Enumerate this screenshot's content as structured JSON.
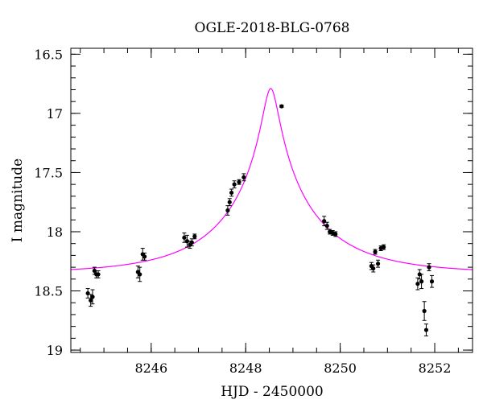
{
  "chart_data": {
    "type": "scatter",
    "title": "OGLE-2018-BLG-0768",
    "xlabel": "HJD - 2450000",
    "ylabel": "I magnitude",
    "xlim": [
      8244.3,
      8252.8
    ],
    "ylim": [
      19.02,
      16.45
    ],
    "y_inverted": true,
    "grid": false,
    "x_ticks": [
      8246,
      8248,
      8250,
      8252
    ],
    "x_tick_labels": [
      "8246",
      "8248",
      "8250",
      "8252"
    ],
    "x_minor_step": 0.5,
    "y_ticks": [
      16.5,
      17,
      17.5,
      18,
      18.5,
      19
    ],
    "y_tick_labels": [
      "16.5",
      "17",
      "17.5",
      "18",
      "18.5",
      "19"
    ],
    "y_minor_step": 0.1,
    "colors": {
      "data": "#000000",
      "model": "#ff00ff",
      "axes": "#000000"
    },
    "model_curve": {
      "description": "Magenta single-lens microlensing model",
      "t0": 8248.53,
      "u0": 0.078,
      "tE": 2.0,
      "baseline_mag": 18.35,
      "peak_mag": 16.79
    },
    "series": [
      {
        "x": [
          8244.66,
          8244.72,
          8244.76,
          8244.8,
          8244.84,
          8244.88,
          8245.72,
          8245.76,
          8245.82,
          8245.86,
          8246.7,
          8246.76,
          8246.82,
          8246.86,
          8246.92,
          8247.62,
          8247.66,
          8247.7,
          8247.76,
          8247.86,
          8247.96,
          8248.76,
          8249.66,
          8249.72,
          8249.78,
          8249.84,
          8249.9,
          8250.66,
          8250.7,
          8250.74,
          8250.8,
          8250.86,
          8250.92,
          8251.64,
          8251.68,
          8251.72,
          8251.78,
          8251.82,
          8251.88,
          8251.94
        ],
        "y": [
          18.52,
          18.58,
          18.55,
          18.33,
          18.36,
          18.36,
          18.34,
          18.36,
          18.19,
          18.21,
          18.05,
          18.08,
          18.11,
          18.09,
          18.04,
          17.82,
          17.75,
          17.67,
          17.6,
          17.58,
          17.54,
          16.94,
          17.91,
          17.95,
          18.0,
          18.01,
          18.02,
          18.29,
          18.31,
          18.17,
          18.27,
          18.14,
          18.13,
          18.44,
          18.36,
          18.42,
          18.67,
          18.83,
          18.3,
          18.42
        ],
        "yerr": [
          0.04,
          0.05,
          0.06,
          0.03,
          0.03,
          0.03,
          0.05,
          0.06,
          0.05,
          0.03,
          0.04,
          0.05,
          0.03,
          0.03,
          0.02,
          0.04,
          0.03,
          0.03,
          0.03,
          0.02,
          0.03,
          0.01,
          0.04,
          0.03,
          0.02,
          0.02,
          0.02,
          0.03,
          0.03,
          0.02,
          0.03,
          0.02,
          0.02,
          0.05,
          0.04,
          0.06,
          0.08,
          0.05,
          0.03,
          0.05
        ]
      }
    ]
  }
}
